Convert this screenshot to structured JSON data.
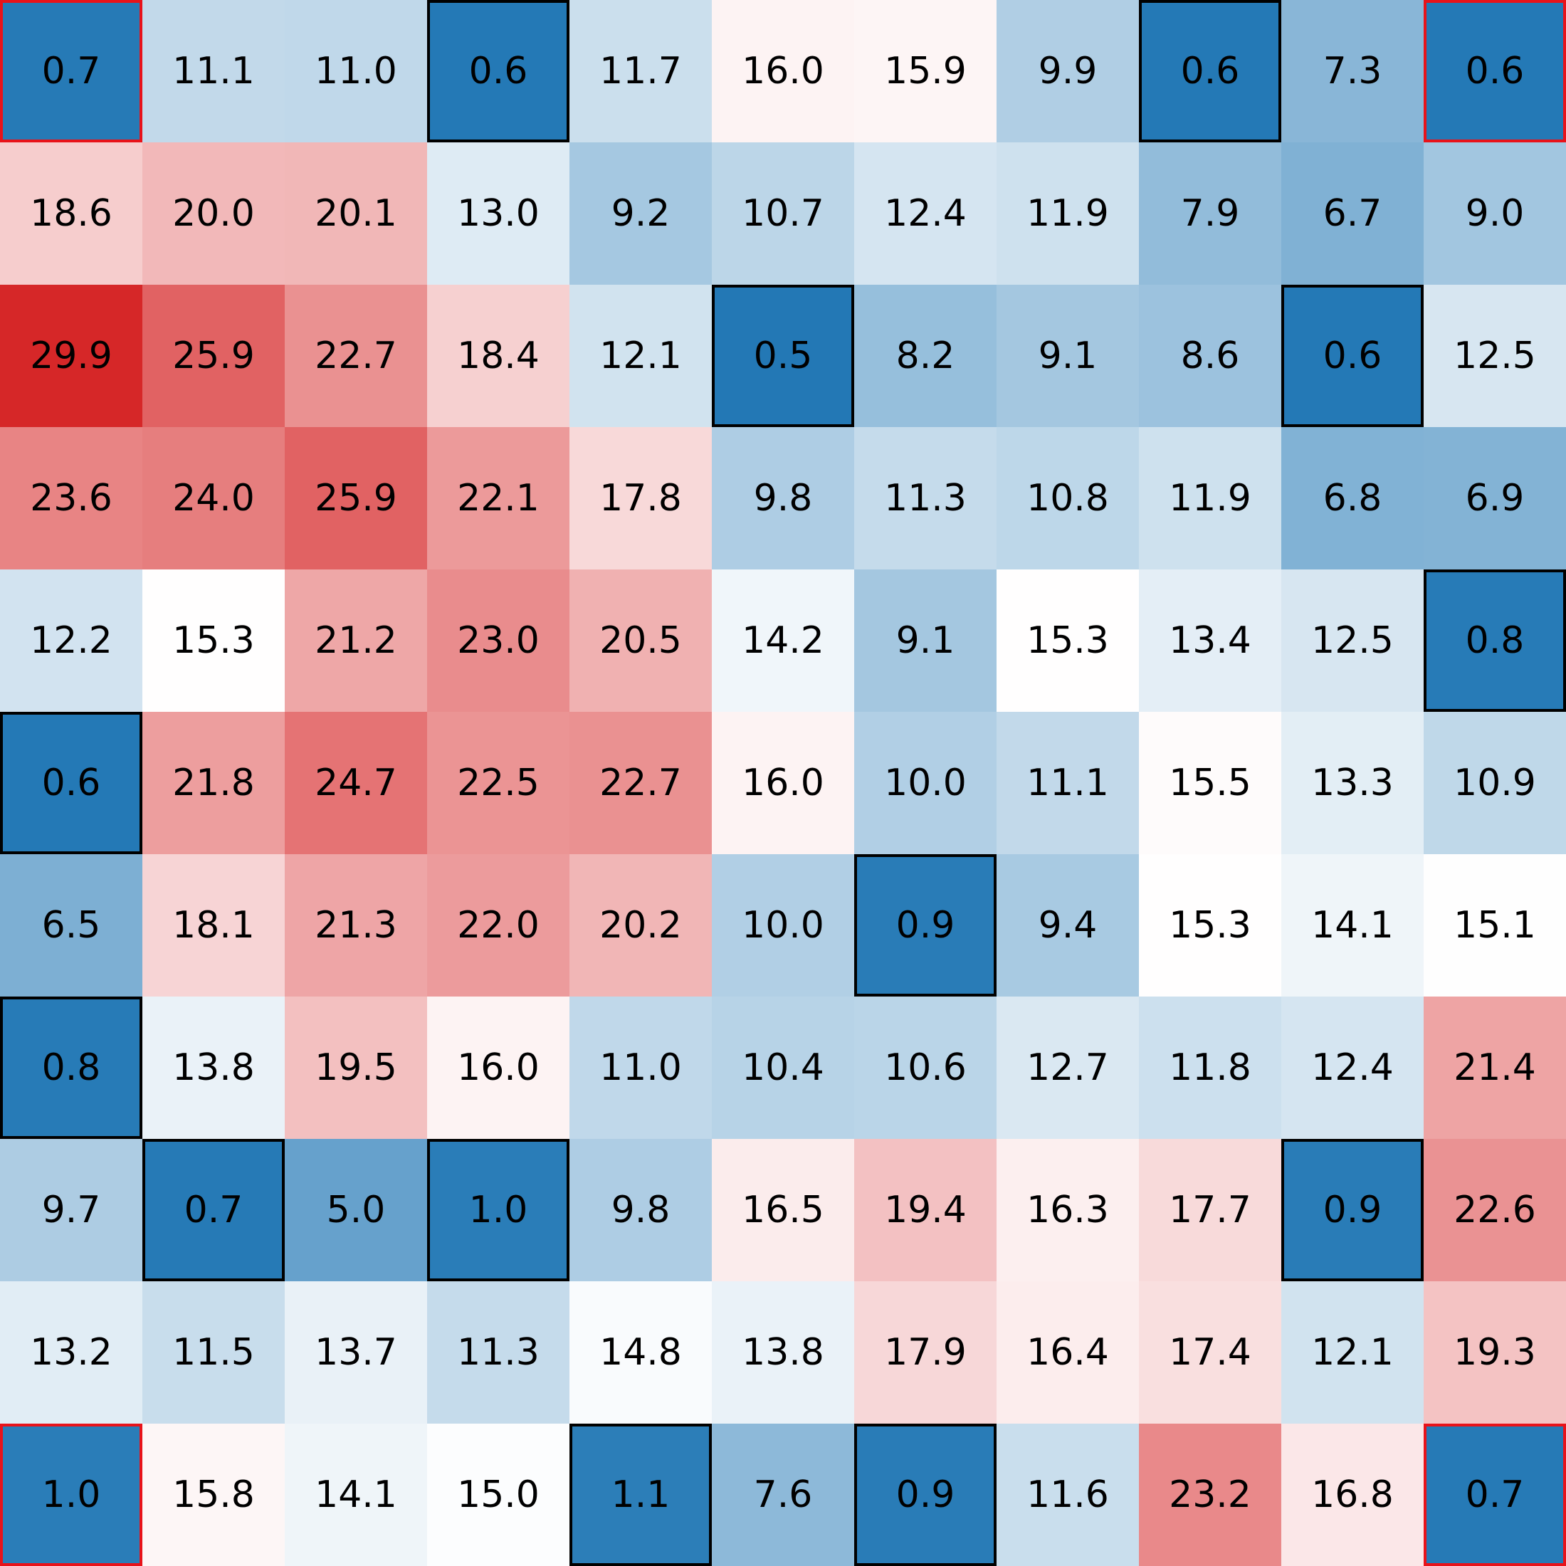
{
  "chart_data": {
    "type": "heatmap",
    "title": "",
    "xlabel": "",
    "ylabel": "",
    "value_format": "0.0",
    "color_scale": {
      "low": "#2378b5",
      "mid": "#ffffff",
      "high": "#d62728",
      "low_value": 0.5,
      "mid_value": 15.2,
      "high_value": 29.9
    },
    "outline_colors": {
      "default": "#000000",
      "corner": "#e8131a"
    },
    "values": [
      [
        0.7,
        11.1,
        11.0,
        0.6,
        11.7,
        16.0,
        15.9,
        9.9,
        0.6,
        7.3,
        0.6
      ],
      [
        18.6,
        20.0,
        20.1,
        13.0,
        9.2,
        10.7,
        12.4,
        11.9,
        7.9,
        6.7,
        9.0
      ],
      [
        29.9,
        25.9,
        22.7,
        18.4,
        12.1,
        0.5,
        8.2,
        9.1,
        8.6,
        0.6,
        12.5
      ],
      [
        23.6,
        24.0,
        25.9,
        22.1,
        17.8,
        9.8,
        11.3,
        10.8,
        11.9,
        6.8,
        6.9
      ],
      [
        12.2,
        15.3,
        21.2,
        23.0,
        20.5,
        14.2,
        9.1,
        15.3,
        13.4,
        12.5,
        0.8
      ],
      [
        0.6,
        21.8,
        24.7,
        22.5,
        22.7,
        16.0,
        10.0,
        11.1,
        15.5,
        13.3,
        10.9
      ],
      [
        6.5,
        18.1,
        21.3,
        22.0,
        20.2,
        10.0,
        0.9,
        9.4,
        15.3,
        14.1,
        15.1
      ],
      [
        0.8,
        13.8,
        19.5,
        16.0,
        11.0,
        10.4,
        10.6,
        12.7,
        11.8,
        12.4,
        21.4
      ],
      [
        9.7,
        0.7,
        5.0,
        1.0,
        9.8,
        16.5,
        19.4,
        16.3,
        17.7,
        0.9,
        22.6
      ],
      [
        13.2,
        11.5,
        13.7,
        11.3,
        14.8,
        13.8,
        17.9,
        16.4,
        17.4,
        12.1,
        19.3
      ],
      [
        1.0,
        15.8,
        14.1,
        15.0,
        1.1,
        7.6,
        0.9,
        11.6,
        23.2,
        16.8,
        0.7
      ]
    ],
    "outlined_cells": [
      [
        0,
        0,
        "corner"
      ],
      [
        0,
        3,
        "default"
      ],
      [
        0,
        8,
        "default"
      ],
      [
        0,
        10,
        "corner"
      ],
      [
        2,
        5,
        "default"
      ],
      [
        2,
        9,
        "default"
      ],
      [
        4,
        10,
        "default"
      ],
      [
        5,
        0,
        "default"
      ],
      [
        6,
        6,
        "default"
      ],
      [
        7,
        0,
        "default"
      ],
      [
        8,
        1,
        "default"
      ],
      [
        8,
        3,
        "default"
      ],
      [
        8,
        9,
        "default"
      ],
      [
        10,
        0,
        "corner"
      ],
      [
        10,
        4,
        "default"
      ],
      [
        10,
        6,
        "default"
      ],
      [
        10,
        10,
        "corner"
      ]
    ]
  }
}
